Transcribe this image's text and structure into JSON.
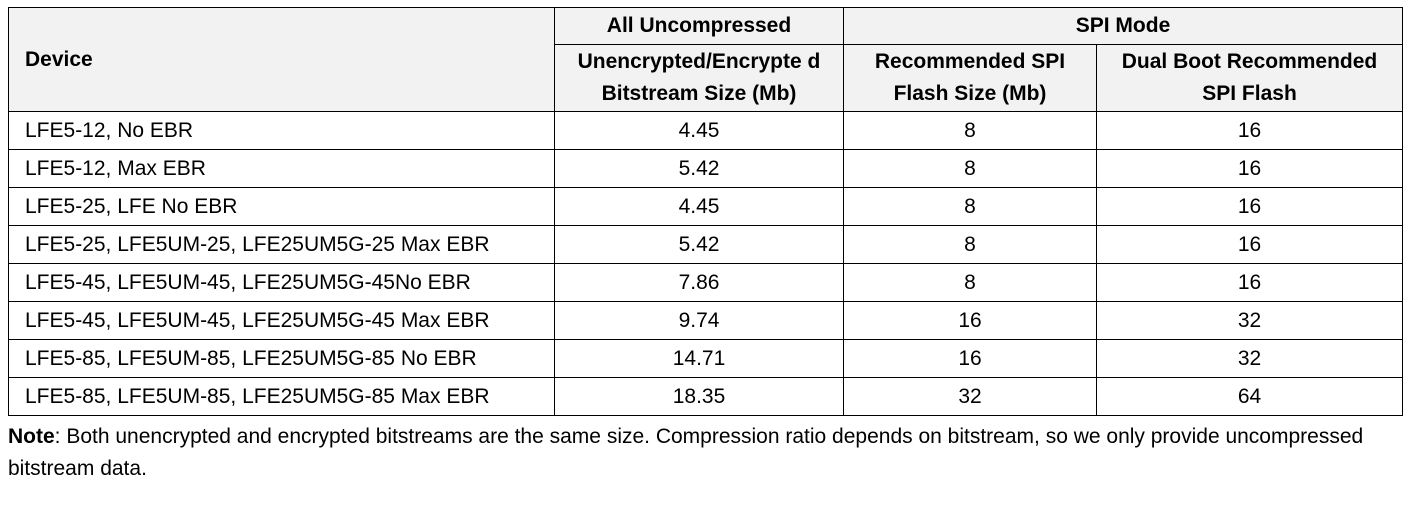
{
  "table": {
    "headers": {
      "device": "Device",
      "group_uncompressed": "All Uncompressed",
      "group_spi": "SPI Mode",
      "col_bitstream": "Unencrypted/Encrypte d Bitstream Size (Mb)",
      "col_spi_flash": "Recommended SPI Flash Size (Mb)",
      "col_dual_boot": "Dual Boot Recommended SPI Flash"
    },
    "rows": [
      {
        "device": "LFE5-12, No EBR",
        "bitstream": "4.45",
        "spi_flash": "8",
        "dual_boot": "16"
      },
      {
        "device": "LFE5-12, Max EBR",
        "bitstream": "5.42",
        "spi_flash": "8",
        "dual_boot": "16"
      },
      {
        "device": "LFE5-25, LFE No EBR",
        "bitstream": "4.45",
        "spi_flash": "8",
        "dual_boot": "16"
      },
      {
        "device": "LFE5-25, LFE5UM-25, LFE25UM5G-25 Max EBR",
        "bitstream": "5.42",
        "spi_flash": "8",
        "dual_boot": "16"
      },
      {
        "device": "LFE5-45, LFE5UM-45, LFE25UM5G-45No EBR",
        "bitstream": "7.86",
        "spi_flash": "8",
        "dual_boot": "16"
      },
      {
        "device": "LFE5-45, LFE5UM-45, LFE25UM5G-45 Max EBR",
        "bitstream": "9.74",
        "spi_flash": "16",
        "dual_boot": "32"
      },
      {
        "device": "LFE5-85, LFE5UM-85, LFE25UM5G-85 No EBR",
        "bitstream": "14.71",
        "spi_flash": "16",
        "dual_boot": "32"
      },
      {
        "device": "LFE5-85, LFE5UM-85, LFE25UM5G-85 Max EBR",
        "bitstream": "18.35",
        "spi_flash": "32",
        "dual_boot": "64"
      }
    ]
  },
  "note": {
    "label": "Note",
    "text": ": Both unencrypted and encrypted bitstreams are the same size. Compression ratio depends on bitstream, so we only provide uncompressed bitstream data."
  }
}
